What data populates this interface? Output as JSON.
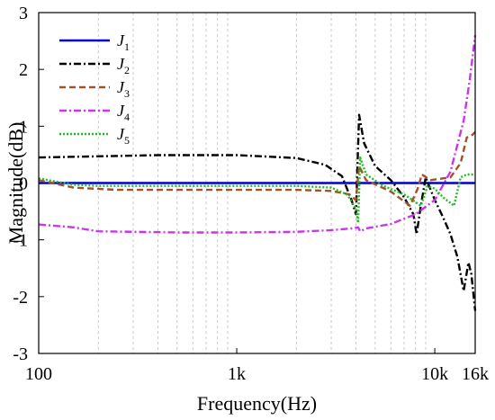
{
  "chart_data": {
    "type": "line",
    "xlabel": "Frequency(Hz)",
    "ylabel": "Magnitude(dB)",
    "xscale": "log",
    "xlim": [
      100,
      16000
    ],
    "ylim": [
      -3,
      3
    ],
    "x_ticks": [
      100,
      1000,
      10000,
      16000
    ],
    "x_tick_labels": [
      "100",
      "1k",
      "10k",
      "16k"
    ],
    "y_ticks": [
      -3,
      -2,
      -1,
      0,
      1,
      2,
      3
    ],
    "y_tick_labels": [
      "-3",
      "-2",
      "-1",
      "0",
      "1",
      "2",
      "3"
    ],
    "grid": "x-minor-dashed",
    "legend_position": "top-left",
    "series": [
      {
        "name": "J",
        "sub": "1",
        "color": "#0000cc",
        "dash": "solid",
        "points": [
          [
            100,
            0
          ],
          [
            16000,
            0
          ]
        ]
      },
      {
        "name": "J",
        "sub": "2",
        "color": "#000000",
        "dash": "dashdot",
        "points": [
          [
            100,
            0.45
          ],
          [
            200,
            0.47
          ],
          [
            400,
            0.49
          ],
          [
            1000,
            0.49
          ],
          [
            2000,
            0.44
          ],
          [
            2800,
            0.32
          ],
          [
            3400,
            0.12
          ],
          [
            3800,
            -0.3
          ],
          [
            4000,
            -0.55
          ],
          [
            4150,
            1.2
          ],
          [
            4400,
            0.7
          ],
          [
            5000,
            0.3
          ],
          [
            6000,
            0.05
          ],
          [
            7000,
            -0.25
          ],
          [
            7800,
            -0.55
          ],
          [
            8100,
            -0.9
          ],
          [
            8500,
            -0.4
          ],
          [
            9000,
            0.1
          ],
          [
            10000,
            -0.3
          ],
          [
            11000,
            -0.6
          ],
          [
            12000,
            -0.9
          ],
          [
            13000,
            -1.3
          ],
          [
            14000,
            -1.9
          ],
          [
            14800,
            -1.4
          ],
          [
            15300,
            -1.6
          ],
          [
            16000,
            -2.25
          ]
        ]
      },
      {
        "name": "J",
        "sub": "3",
        "color": "#a0522d",
        "dash": "dash",
        "points": [
          [
            100,
            0.05
          ],
          [
            150,
            -0.08
          ],
          [
            250,
            -0.12
          ],
          [
            500,
            -0.12
          ],
          [
            1000,
            -0.12
          ],
          [
            2000,
            -0.12
          ],
          [
            3000,
            -0.14
          ],
          [
            3700,
            -0.2
          ],
          [
            4000,
            -0.3
          ],
          [
            4150,
            0.3
          ],
          [
            4500,
            0.05
          ],
          [
            6000,
            -0.15
          ],
          [
            7500,
            -0.4
          ],
          [
            8200,
            -0.1
          ],
          [
            8600,
            0.15
          ],
          [
            9500,
            0.05
          ],
          [
            12000,
            0.1
          ],
          [
            13500,
            0.35
          ],
          [
            14500,
            0.8
          ],
          [
            15500,
            0.85
          ],
          [
            16000,
            0.9
          ]
        ]
      },
      {
        "name": "J",
        "sub": "4",
        "color": "#cc33ee",
        "dash": "dashdot",
        "points": [
          [
            100,
            -0.73
          ],
          [
            150,
            -0.78
          ],
          [
            200,
            -0.85
          ],
          [
            500,
            -0.87
          ],
          [
            1000,
            -0.87
          ],
          [
            2000,
            -0.86
          ],
          [
            3000,
            -0.83
          ],
          [
            3800,
            -0.8
          ],
          [
            4100,
            -0.78
          ],
          [
            4200,
            -0.85
          ],
          [
            4500,
            -0.8
          ],
          [
            6000,
            -0.72
          ],
          [
            8000,
            -0.55
          ],
          [
            10000,
            -0.3
          ],
          [
            12000,
            0.2
          ],
          [
            14000,
            1.1
          ],
          [
            15000,
            1.8
          ],
          [
            16000,
            2.6
          ]
        ]
      },
      {
        "name": "J",
        "sub": "5",
        "color": "#22bb22",
        "dash": "dot",
        "points": [
          [
            100,
            0.08
          ],
          [
            150,
            -0.03
          ],
          [
            200,
            -0.05
          ],
          [
            500,
            -0.05
          ],
          [
            1000,
            -0.05
          ],
          [
            2000,
            -0.05
          ],
          [
            3000,
            -0.08
          ],
          [
            3600,
            -0.2
          ],
          [
            4000,
            -0.45
          ],
          [
            4100,
            -0.7
          ],
          [
            4200,
            0.45
          ],
          [
            4500,
            0.15
          ],
          [
            5500,
            -0.05
          ],
          [
            7000,
            -0.2
          ],
          [
            8500,
            -0.4
          ],
          [
            9200,
            -0.05
          ],
          [
            10000,
            -0.1
          ],
          [
            11000,
            -0.25
          ],
          [
            12500,
            -0.4
          ],
          [
            13500,
            0.1
          ],
          [
            14500,
            0.15
          ],
          [
            16000,
            0.15
          ]
        ]
      }
    ]
  }
}
